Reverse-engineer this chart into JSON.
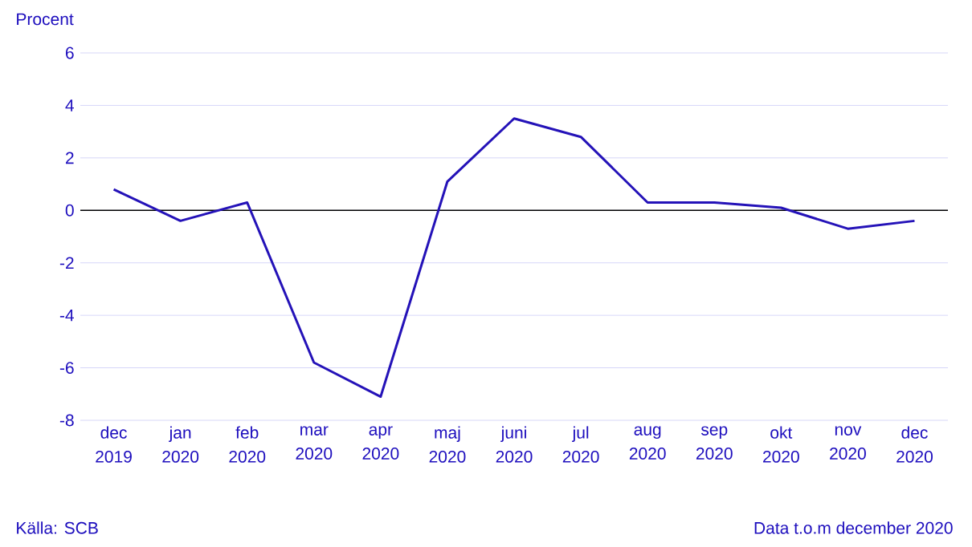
{
  "chart_data": {
    "type": "line",
    "ylabel": "Procent",
    "categories": [
      "dec 2019",
      "jan 2020",
      "feb 2020",
      "mar 2020",
      "apr 2020",
      "maj 2020",
      "juni 2020",
      "jul 2020",
      "aug 2020",
      "sep 2020",
      "okt 2020",
      "nov 2020",
      "dec 2020"
    ],
    "series": [
      {
        "color": "#2412b8",
        "values": [
          0.8,
          -0.4,
          0.3,
          -5.8,
          -7.1,
          1.1,
          3.5,
          2.8,
          0.3,
          0.3,
          0.1,
          -0.7,
          -0.4
        ]
      }
    ],
    "ylim": [
      -8,
      6
    ],
    "yticks": [
      -8,
      -6,
      -4,
      -2,
      0,
      2,
      4,
      6
    ],
    "grid": "y",
    "ref_lines": [
      {
        "axis": "y",
        "value": 0,
        "color": "#000000"
      }
    ],
    "annotations": [
      "Källa: SCB",
      "Data t.o.m december 2020"
    ]
  }
}
